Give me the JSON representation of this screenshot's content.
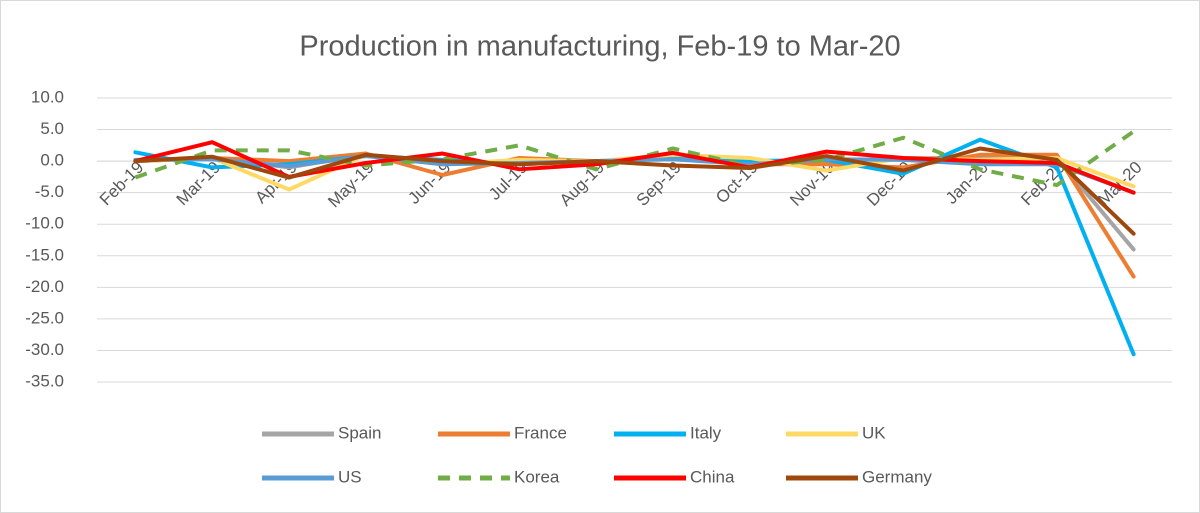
{
  "chart_data": {
    "type": "line",
    "title": "Production in manufacturing, Feb-19 to Mar-20",
    "categories": [
      "Feb-19",
      "Mar-19",
      "Apr-19",
      "May-19",
      "Jun-19",
      "Jul-19",
      "Aug-19",
      "Sep-19",
      "Oct-19",
      "Nov-19",
      "Dec-19",
      "Jan-20",
      "Feb-20",
      "Mar-20"
    ],
    "series": [
      {
        "name": "Spain",
        "color": "#a5a5a5",
        "values": [
          0,
          0.5,
          -1,
          1,
          -0.5,
          0,
          0,
          0.5,
          -0.5,
          0,
          0.5,
          0.5,
          0.5,
          -14
        ]
      },
      {
        "name": "France",
        "color": "#ed7d31",
        "values": [
          0,
          0.5,
          0,
          1.2,
          -2.2,
          0.5,
          0,
          0.5,
          -0.5,
          -0.5,
          -1,
          1,
          1,
          -18.3
        ]
      },
      {
        "name": "Italy",
        "color": "#00b0f0",
        "values": [
          1.4,
          -1,
          -0.5,
          0.8,
          0.2,
          -0.5,
          0,
          0.5,
          0,
          0.2,
          -2,
          3.4,
          -1,
          -30.6
        ]
      },
      {
        "name": "UK",
        "color": "#ffd966",
        "values": [
          0,
          0.5,
          -4.5,
          1,
          -0.5,
          0.2,
          0,
          1,
          0.5,
          -1.5,
          0.5,
          0.2,
          0.5,
          -4
        ]
      },
      {
        "name": "US",
        "color": "#5b9bd5",
        "values": [
          0.2,
          0.3,
          -0.8,
          0.8,
          -0.5,
          -0.3,
          0,
          0.3,
          -0.5,
          0.3,
          0.2,
          -0.5,
          -0.5,
          -5
        ]
      },
      {
        "name": "Korea",
        "color": "#70ad47",
        "dashed": true,
        "values": [
          -2.6,
          1.7,
          1.7,
          -0.7,
          0.3,
          2.5,
          -1.3,
          2,
          -0.8,
          0.2,
          3.7,
          -1.3,
          -3.8,
          4.7
        ]
      },
      {
        "name": "China",
        "color": "#ff0000",
        "values": [
          0,
          3,
          -2.5,
          -0.3,
          1.2,
          -1.3,
          -0.5,
          1.3,
          -1,
          1.5,
          0.5,
          0,
          -0.3,
          -5
        ]
      },
      {
        "name": "Germany",
        "color": "#9e480e",
        "values": [
          0,
          0.7,
          -2.6,
          1,
          0,
          -0.5,
          0,
          -0.7,
          -1.1,
          0.8,
          -1.5,
          2,
          0.2,
          -11.5
        ]
      }
    ],
    "ylim": [
      -40,
      10
    ],
    "yticks": [
      {
        "value": 10,
        "label": "10.0"
      },
      {
        "value": 5,
        "label": "5.0"
      },
      {
        "value": 0,
        "label": "0.0"
      },
      {
        "value": -5,
        "label": "-5.0"
      },
      {
        "value": -10,
        "label": "-10.0"
      },
      {
        "value": -15,
        "label": "-15.0"
      },
      {
        "value": -20,
        "label": "-20.0"
      },
      {
        "value": -25,
        "label": "-25.0"
      },
      {
        "value": -30,
        "label": "-30.0"
      },
      {
        "value": -35,
        "label": "-35.0"
      }
    ],
    "grid": true,
    "legend_position": "bottom"
  }
}
